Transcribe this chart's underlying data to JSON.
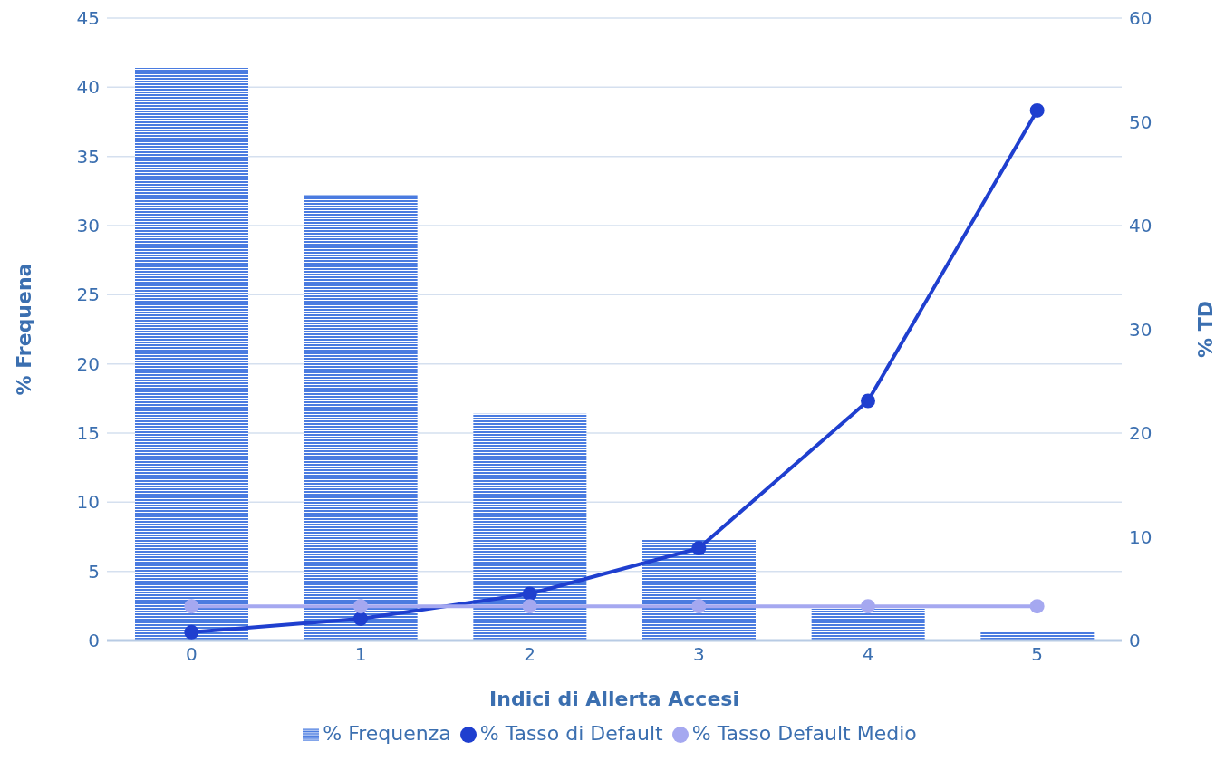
{
  "chart_data": {
    "type": "bar",
    "xlabel": "Indici di Allerta Accesi",
    "ylabel": "% Frequena",
    "y2label": "% TD",
    "categories": [
      "0",
      "1",
      "2",
      "3",
      "4",
      "5"
    ],
    "series": [
      {
        "name": "% Frequenza",
        "color": "#4a7be0",
        "values": [
          41.4,
          32.2,
          16.4,
          7.3,
          2.3,
          0.7
        ]
      },
      {
        "name": "% Tasso di Default",
        "type": "line",
        "axis": "y2",
        "color": "#1f3fcf",
        "values": [
          0.8,
          2.1,
          4.5,
          8.9,
          23.1,
          51.1
        ]
      },
      {
        "name": "% Tasso Default Medio",
        "type": "line",
        "axis": "y2",
        "color": "#a5a8f0",
        "values": [
          3.3,
          3.3,
          3.3,
          3.3,
          3.3,
          3.3
        ]
      }
    ],
    "ylim": [
      0,
      45
    ],
    "yticks": [
      0,
      5,
      10,
      15,
      20,
      25,
      30,
      35,
      40,
      45
    ],
    "y2lim": [
      0,
      60
    ],
    "y2ticks": [
      0,
      10,
      20,
      30,
      40,
      50,
      60
    ],
    "grid": "y",
    "legend": "bottom",
    "marker": "circle",
    "line_style": "solid"
  }
}
